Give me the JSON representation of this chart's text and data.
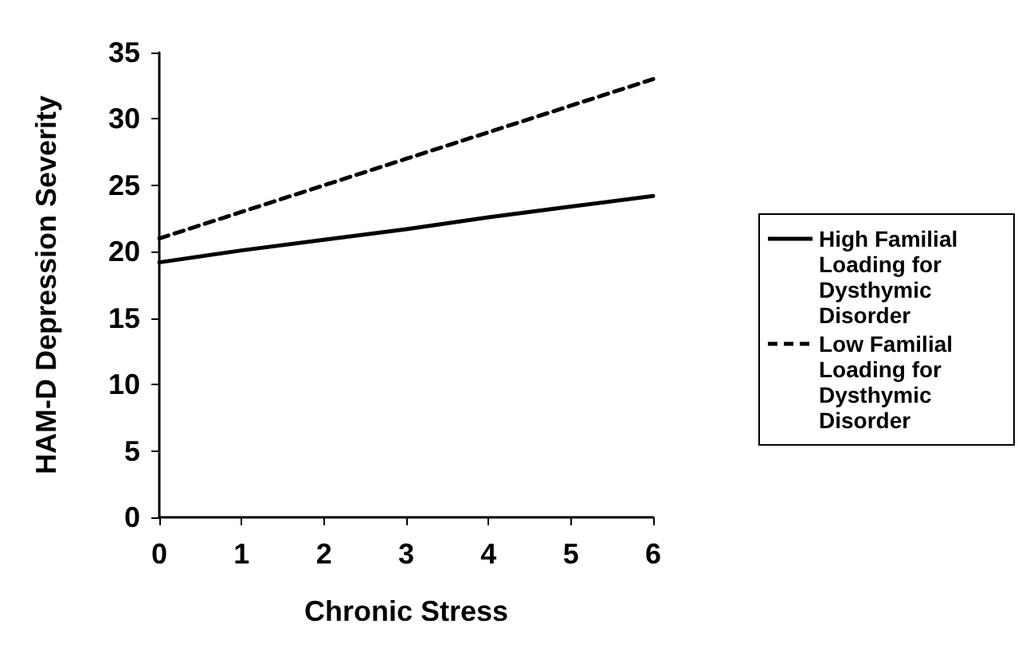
{
  "chart_data": {
    "type": "line",
    "xlabel": "Chronic Stress",
    "ylabel": "HAM-D Depression Severity",
    "x": [
      0,
      1,
      2,
      3,
      4,
      5,
      6
    ],
    "series": [
      {
        "name": "High Familial Loading for Dysthymic Disorder",
        "color": "#000000",
        "line_style": "solid",
        "values": [
          19.2,
          20.1,
          20.9,
          21.7,
          22.6,
          23.4,
          24.2
        ]
      },
      {
        "name": "Low Familial Loading for Dysthymic Disorder",
        "color": "#000000",
        "line_style": "dashed",
        "values": [
          21.0,
          23.0,
          25.0,
          27.0,
          29.0,
          31.0,
          33.0
        ]
      }
    ],
    "xlim": [
      0,
      6
    ],
    "xticks": [
      0,
      1,
      2,
      3,
      4,
      5,
      6
    ],
    "ylim": [
      0,
      35
    ],
    "yticks": [
      0,
      5,
      10,
      15,
      20,
      25,
      30,
      35
    ],
    "grid": false,
    "legend": "right",
    "marker": "none"
  }
}
